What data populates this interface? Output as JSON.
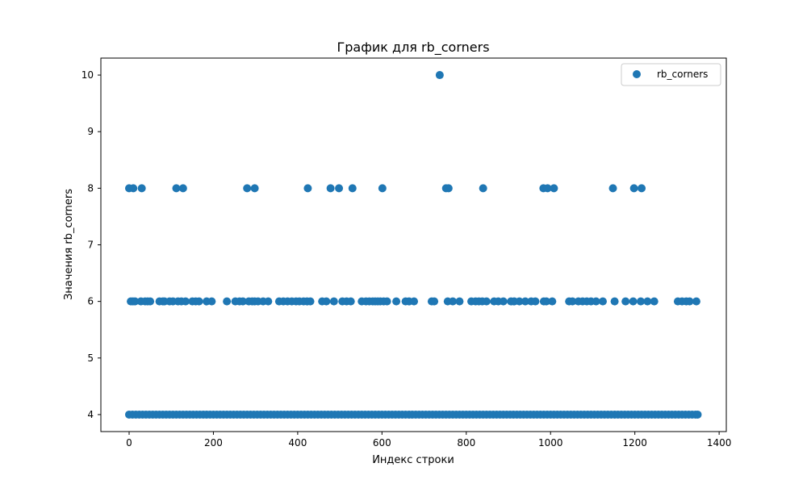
{
  "chart_data": {
    "type": "scatter",
    "title": "График для rb_corners",
    "xlabel": "Индекс строки",
    "ylabel": "Значения rb_corners",
    "xlim": [
      -67,
      1417
    ],
    "ylim": [
      3.7,
      10.3
    ],
    "xticks": [
      0,
      200,
      400,
      600,
      800,
      1000,
      1200,
      1400
    ],
    "yticks": [
      4,
      5,
      6,
      7,
      8,
      9,
      10
    ],
    "grid": false,
    "legend_position": "top-right",
    "series": [
      {
        "name": "rb_corners",
        "color": "#1f77b4",
        "points": [
          [
            0,
            8
          ],
          [
            10,
            8
          ],
          [
            30,
            8
          ],
          [
            112,
            8
          ],
          [
            128,
            8
          ],
          [
            280,
            8
          ],
          [
            298,
            8
          ],
          [
            424,
            8
          ],
          [
            478,
            8
          ],
          [
            498,
            8
          ],
          [
            530,
            8
          ],
          [
            601,
            8
          ],
          [
            752,
            8
          ],
          [
            758,
            8
          ],
          [
            840,
            8
          ],
          [
            983,
            8
          ],
          [
            993,
            8
          ],
          [
            1008,
            8
          ],
          [
            1148,
            8
          ],
          [
            1198,
            8
          ],
          [
            1216,
            8
          ],
          [
            737,
            10
          ],
          [
            4,
            6
          ],
          [
            9,
            6
          ],
          [
            14,
            6
          ],
          [
            28,
            6
          ],
          [
            38,
            6
          ],
          [
            44,
            6
          ],
          [
            50,
            6
          ],
          [
            72,
            6
          ],
          [
            80,
            6
          ],
          [
            84,
            6
          ],
          [
            96,
            6
          ],
          [
            104,
            6
          ],
          [
            116,
            6
          ],
          [
            124,
            6
          ],
          [
            134,
            6
          ],
          [
            150,
            6
          ],
          [
            158,
            6
          ],
          [
            166,
            6
          ],
          [
            184,
            6
          ],
          [
            196,
            6
          ],
          [
            232,
            6
          ],
          [
            252,
            6
          ],
          [
            262,
            6
          ],
          [
            270,
            6
          ],
          [
            284,
            6
          ],
          [
            292,
            6
          ],
          [
            298,
            6
          ],
          [
            306,
            6
          ],
          [
            318,
            6
          ],
          [
            330,
            6
          ],
          [
            356,
            6
          ],
          [
            366,
            6
          ],
          [
            376,
            6
          ],
          [
            386,
            6
          ],
          [
            396,
            6
          ],
          [
            404,
            6
          ],
          [
            414,
            6
          ],
          [
            422,
            6
          ],
          [
            430,
            6
          ],
          [
            458,
            6
          ],
          [
            468,
            6
          ],
          [
            486,
            6
          ],
          [
            506,
            6
          ],
          [
            516,
            6
          ],
          [
            526,
            6
          ],
          [
            552,
            6
          ],
          [
            562,
            6
          ],
          [
            570,
            6
          ],
          [
            578,
            6
          ],
          [
            584,
            6
          ],
          [
            590,
            6
          ],
          [
            596,
            6
          ],
          [
            604,
            6
          ],
          [
            612,
            6
          ],
          [
            634,
            6
          ],
          [
            656,
            6
          ],
          [
            664,
            6
          ],
          [
            676,
            6
          ],
          [
            718,
            6
          ],
          [
            724,
            6
          ],
          [
            756,
            6
          ],
          [
            768,
            6
          ],
          [
            784,
            6
          ],
          [
            812,
            6
          ],
          [
            822,
            6
          ],
          [
            830,
            6
          ],
          [
            838,
            6
          ],
          [
            848,
            6
          ],
          [
            866,
            6
          ],
          [
            876,
            6
          ],
          [
            888,
            6
          ],
          [
            906,
            6
          ],
          [
            914,
            6
          ],
          [
            926,
            6
          ],
          [
            940,
            6
          ],
          [
            954,
            6
          ],
          [
            964,
            6
          ],
          [
            984,
            6
          ],
          [
            990,
            6
          ],
          [
            1004,
            6
          ],
          [
            1044,
            6
          ],
          [
            1052,
            6
          ],
          [
            1066,
            6
          ],
          [
            1076,
            6
          ],
          [
            1086,
            6
          ],
          [
            1096,
            6
          ],
          [
            1108,
            6
          ],
          [
            1124,
            6
          ],
          [
            1152,
            6
          ],
          [
            1178,
            6
          ],
          [
            1196,
            6
          ],
          [
            1214,
            6
          ],
          [
            1230,
            6
          ],
          [
            1246,
            6
          ],
          [
            1302,
            6
          ],
          [
            1312,
            6
          ],
          [
            1322,
            6
          ],
          [
            1330,
            6
          ],
          [
            1346,
            6
          ],
          [
            0,
            4
          ],
          [
            8,
            4
          ],
          [
            16,
            4
          ],
          [
            24,
            4
          ],
          [
            32,
            4
          ],
          [
            40,
            4
          ],
          [
            48,
            4
          ],
          [
            56,
            4
          ],
          [
            64,
            4
          ],
          [
            72,
            4
          ],
          [
            80,
            4
          ],
          [
            88,
            4
          ],
          [
            96,
            4
          ],
          [
            104,
            4
          ],
          [
            112,
            4
          ],
          [
            120,
            4
          ],
          [
            128,
            4
          ],
          [
            136,
            4
          ],
          [
            144,
            4
          ],
          [
            152,
            4
          ],
          [
            160,
            4
          ],
          [
            168,
            4
          ],
          [
            176,
            4
          ],
          [
            184,
            4
          ],
          [
            192,
            4
          ],
          [
            200,
            4
          ],
          [
            208,
            4
          ],
          [
            216,
            4
          ],
          [
            224,
            4
          ],
          [
            232,
            4
          ],
          [
            240,
            4
          ],
          [
            248,
            4
          ],
          [
            256,
            4
          ],
          [
            264,
            4
          ],
          [
            272,
            4
          ],
          [
            280,
            4
          ],
          [
            288,
            4
          ],
          [
            296,
            4
          ],
          [
            304,
            4
          ],
          [
            312,
            4
          ],
          [
            320,
            4
          ],
          [
            328,
            4
          ],
          [
            336,
            4
          ],
          [
            344,
            4
          ],
          [
            352,
            4
          ],
          [
            360,
            4
          ],
          [
            368,
            4
          ],
          [
            376,
            4
          ],
          [
            384,
            4
          ],
          [
            392,
            4
          ],
          [
            400,
            4
          ],
          [
            408,
            4
          ],
          [
            416,
            4
          ],
          [
            424,
            4
          ],
          [
            432,
            4
          ],
          [
            440,
            4
          ],
          [
            448,
            4
          ],
          [
            456,
            4
          ],
          [
            464,
            4
          ],
          [
            472,
            4
          ],
          [
            480,
            4
          ],
          [
            488,
            4
          ],
          [
            496,
            4
          ],
          [
            504,
            4
          ],
          [
            512,
            4
          ],
          [
            520,
            4
          ],
          [
            528,
            4
          ],
          [
            536,
            4
          ],
          [
            544,
            4
          ],
          [
            552,
            4
          ],
          [
            560,
            4
          ],
          [
            568,
            4
          ],
          [
            576,
            4
          ],
          [
            584,
            4
          ],
          [
            592,
            4
          ],
          [
            600,
            4
          ],
          [
            608,
            4
          ],
          [
            616,
            4
          ],
          [
            624,
            4
          ],
          [
            632,
            4
          ],
          [
            640,
            4
          ],
          [
            648,
            4
          ],
          [
            656,
            4
          ],
          [
            664,
            4
          ],
          [
            672,
            4
          ],
          [
            680,
            4
          ],
          [
            688,
            4
          ],
          [
            696,
            4
          ],
          [
            704,
            4
          ],
          [
            712,
            4
          ],
          [
            720,
            4
          ],
          [
            728,
            4
          ],
          [
            736,
            4
          ],
          [
            744,
            4
          ],
          [
            752,
            4
          ],
          [
            760,
            4
          ],
          [
            768,
            4
          ],
          [
            776,
            4
          ],
          [
            784,
            4
          ],
          [
            792,
            4
          ],
          [
            800,
            4
          ],
          [
            808,
            4
          ],
          [
            816,
            4
          ],
          [
            824,
            4
          ],
          [
            832,
            4
          ],
          [
            840,
            4
          ],
          [
            848,
            4
          ],
          [
            856,
            4
          ],
          [
            864,
            4
          ],
          [
            872,
            4
          ],
          [
            880,
            4
          ],
          [
            888,
            4
          ],
          [
            896,
            4
          ],
          [
            904,
            4
          ],
          [
            912,
            4
          ],
          [
            920,
            4
          ],
          [
            928,
            4
          ],
          [
            936,
            4
          ],
          [
            944,
            4
          ],
          [
            952,
            4
          ],
          [
            960,
            4
          ],
          [
            968,
            4
          ],
          [
            976,
            4
          ],
          [
            984,
            4
          ],
          [
            992,
            4
          ],
          [
            1000,
            4
          ],
          [
            1008,
            4
          ],
          [
            1016,
            4
          ],
          [
            1024,
            4
          ],
          [
            1032,
            4
          ],
          [
            1040,
            4
          ],
          [
            1048,
            4
          ],
          [
            1056,
            4
          ],
          [
            1064,
            4
          ],
          [
            1072,
            4
          ],
          [
            1080,
            4
          ],
          [
            1088,
            4
          ],
          [
            1096,
            4
          ],
          [
            1104,
            4
          ],
          [
            1112,
            4
          ],
          [
            1120,
            4
          ],
          [
            1128,
            4
          ],
          [
            1136,
            4
          ],
          [
            1144,
            4
          ],
          [
            1152,
            4
          ],
          [
            1160,
            4
          ],
          [
            1168,
            4
          ],
          [
            1176,
            4
          ],
          [
            1184,
            4
          ],
          [
            1192,
            4
          ],
          [
            1200,
            4
          ],
          [
            1208,
            4
          ],
          [
            1216,
            4
          ],
          [
            1224,
            4
          ],
          [
            1232,
            4
          ],
          [
            1240,
            4
          ],
          [
            1248,
            4
          ],
          [
            1256,
            4
          ],
          [
            1264,
            4
          ],
          [
            1272,
            4
          ],
          [
            1280,
            4
          ],
          [
            1288,
            4
          ],
          [
            1296,
            4
          ],
          [
            1304,
            4
          ],
          [
            1312,
            4
          ],
          [
            1320,
            4
          ],
          [
            1328,
            4
          ],
          [
            1336,
            4
          ],
          [
            1344,
            4
          ],
          [
            1349,
            4
          ]
        ]
      }
    ]
  }
}
